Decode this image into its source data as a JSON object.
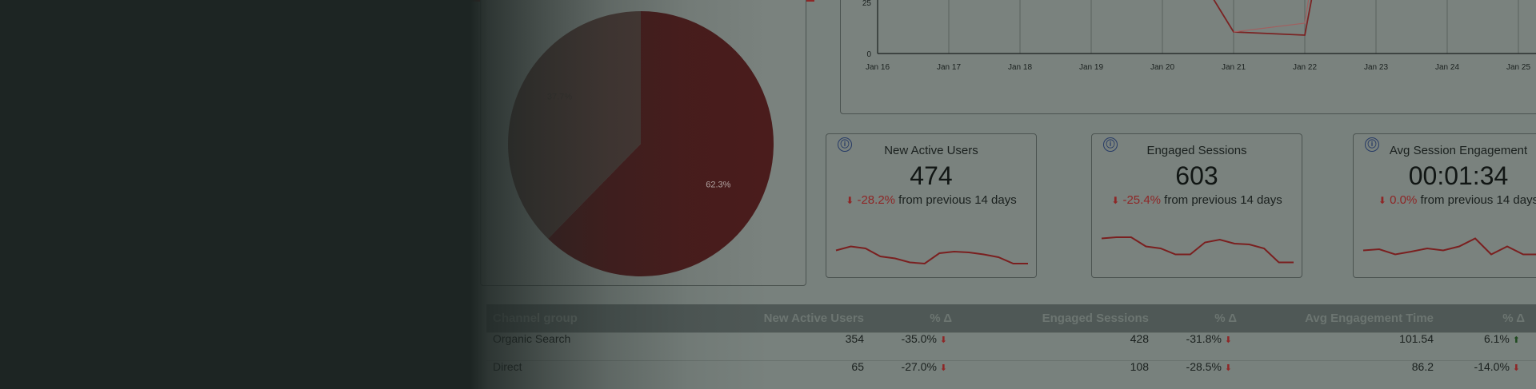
{
  "pie": {
    "slices": [
      {
        "label": "62.3%",
        "value": 62.3,
        "color": "#4a1c1c"
      },
      {
        "label": "37.7%",
        "value": 37.7,
        "color": "#4a3a36"
      }
    ]
  },
  "line_chart": {
    "y_ticks": [
      "0",
      "25"
    ],
    "x_labels": [
      "Jan 16",
      "Jan 17",
      "Jan 18",
      "Jan 19",
      "Jan 20",
      "Jan 21",
      "Jan 22",
      "Jan 23",
      "Jan 24",
      "Jan 25"
    ]
  },
  "scorecards": [
    {
      "info_icon": "ⓘ",
      "title": "New Active Users",
      "value": "474",
      "arrow": "⬇",
      "delta": "-28.2%",
      "delta_text": "from previous 14 days",
      "spark": [
        0.45,
        0.55,
        0.5,
        0.3,
        0.25,
        0.15,
        0.12,
        0.38,
        0.42,
        0.4,
        0.35,
        0.28,
        0.12,
        0.12
      ]
    },
    {
      "info_icon": "ⓘ",
      "title": "Engaged Sessions",
      "value": "603",
      "arrow": "⬇",
      "delta": "-25.4%",
      "delta_text": "from previous 14 days",
      "spark": [
        0.75,
        0.78,
        0.78,
        0.55,
        0.5,
        0.35,
        0.35,
        0.65,
        0.72,
        0.62,
        0.6,
        0.5,
        0.15,
        0.15
      ]
    },
    {
      "info_icon": "ⓘ",
      "title": "Avg Session Engagement",
      "value": "00:01:34",
      "arrow": "⬇",
      "delta": "0.0%",
      "delta_text": "from previous 14 days",
      "spark": [
        0.45,
        0.48,
        0.35,
        0.42,
        0.5,
        0.45,
        0.55,
        0.75,
        0.35,
        0.55,
        0.35,
        0.35,
        0.1
      ]
    }
  ],
  "table": {
    "headers": [
      "Channel group",
      "New Active Users",
      "% Δ",
      "Engaged Sessions",
      "% Δ",
      "Avg Engagement Time",
      "% Δ"
    ],
    "rows": [
      {
        "channel": "Organic Search",
        "new_users": "354",
        "new_users_delta": "-35.0%",
        "new_users_dir": "down",
        "sessions": "428",
        "sessions_delta": "-31.8%",
        "sessions_dir": "down",
        "eng_time": "101.54",
        "eng_time_delta": "6.1%",
        "eng_time_dir": "up"
      },
      {
        "channel": "Direct",
        "new_users": "65",
        "new_users_delta": "-27.0%",
        "new_users_dir": "down",
        "sessions": "108",
        "sessions_delta": "-28.5%",
        "sessions_dir": "down",
        "eng_time": "86.2",
        "eng_time_delta": "-14.0%",
        "eng_time_dir": "down"
      }
    ]
  },
  "colors": {
    "background": "#1d2523",
    "panel": "#78817d",
    "accent_red": "#8e2626",
    "info_blue": "#263a66"
  }
}
